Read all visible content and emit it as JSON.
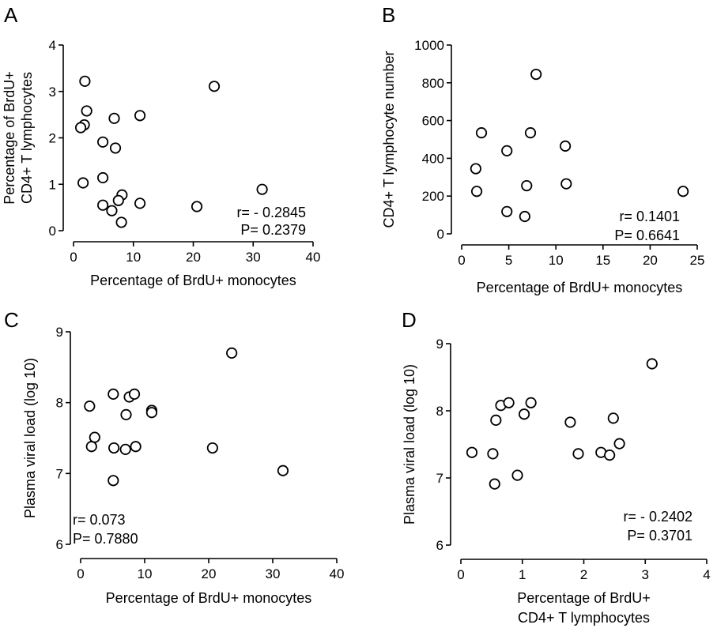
{
  "chart_data": [
    {
      "panel": "A",
      "type": "scatter",
      "xlabel": "Percentage of BrdU+ monocytes",
      "ylabel": [
        "Percentage of BrdU+",
        "CD4+ T lymphocytes"
      ],
      "xlim": [
        0,
        40
      ],
      "ylim": [
        0,
        4
      ],
      "xticks": [
        0,
        10,
        20,
        30,
        40
      ],
      "yticks": [
        0,
        1,
        2,
        3,
        4
      ],
      "annotation": [
        "r= - 0.2845",
        "P= 0.2379"
      ],
      "annotation_align": "right",
      "points": [
        [
          1.9,
          3.22
        ],
        [
          2.2,
          2.58
        ],
        [
          1.8,
          2.28
        ],
        [
          1.2,
          2.22
        ],
        [
          6.8,
          2.42
        ],
        [
          11.1,
          2.48
        ],
        [
          4.9,
          1.91
        ],
        [
          7.0,
          1.78
        ],
        [
          4.9,
          1.14
        ],
        [
          1.6,
          1.03
        ],
        [
          8.1,
          0.77
        ],
        [
          7.5,
          0.65
        ],
        [
          11.1,
          0.59
        ],
        [
          4.9,
          0.55
        ],
        [
          6.4,
          0.43
        ],
        [
          8.0,
          0.18
        ],
        [
          20.6,
          0.52
        ],
        [
          23.5,
          3.11
        ],
        [
          31.5,
          0.89
        ]
      ]
    },
    {
      "panel": "B",
      "type": "scatter",
      "xlabel": "Percentage of BrdU+ monocytes",
      "ylabel": [
        "CD4+ T lymphocyte  number"
      ],
      "xlim": [
        0,
        25
      ],
      "ylim": [
        0,
        1000
      ],
      "xticks": [
        0,
        5,
        10,
        15,
        20,
        25
      ],
      "yticks": [
        0,
        200,
        400,
        600,
        800,
        1000
      ],
      "annotation": [
        "r= 0.1401",
        "P= 0.6641"
      ],
      "annotation_align": "right",
      "points": [
        [
          2.1,
          535
        ],
        [
          1.5,
          345
        ],
        [
          1.6,
          225
        ],
        [
          4.8,
          440
        ],
        [
          7.3,
          535
        ],
        [
          7.9,
          845
        ],
        [
          6.9,
          255
        ],
        [
          4.8,
          118
        ],
        [
          6.7,
          92
        ],
        [
          11.0,
          465
        ],
        [
          11.1,
          265
        ],
        [
          23.5,
          225
        ]
      ]
    },
    {
      "panel": "C",
      "type": "scatter",
      "xlabel": "Percentage of BrdU+ monocytes",
      "ylabel": [
        "Plasma viral load (log 10)"
      ],
      "xlim": [
        0,
        40
      ],
      "ylim": [
        6,
        9
      ],
      "xticks": [
        0,
        10,
        20,
        30,
        40
      ],
      "yticks": [
        6,
        7,
        8,
        9
      ],
      "annotation": [
        "r= 0.073",
        "P= 0.7880"
      ],
      "annotation_align": "left",
      "points": [
        [
          1.4,
          7.95
        ],
        [
          2.2,
          7.51
        ],
        [
          1.7,
          7.38
        ],
        [
          5.1,
          8.12
        ],
        [
          7.6,
          8.08
        ],
        [
          8.4,
          8.12
        ],
        [
          7.1,
          7.83
        ],
        [
          11.1,
          7.89
        ],
        [
          11.1,
          7.86
        ],
        [
          5.2,
          7.36
        ],
        [
          7.0,
          7.34
        ],
        [
          8.6,
          7.38
        ],
        [
          5.1,
          6.9
        ],
        [
          20.6,
          7.36
        ],
        [
          23.6,
          8.7
        ],
        [
          31.6,
          7.04
        ]
      ]
    },
    {
      "panel": "D",
      "type": "scatter",
      "xlabel": [
        "Percentage of BrdU+",
        "CD4+ T lymphocytes"
      ],
      "ylabel": [
        "Plasma viral load (log 10)"
      ],
      "xlim": [
        0,
        4
      ],
      "ylim": [
        6,
        9
      ],
      "xticks": [
        0,
        1,
        2,
        3,
        4
      ],
      "yticks": [
        6,
        7,
        8,
        9
      ],
      "annotation": [
        "r= - 0.2402",
        "P= 0.3701"
      ],
      "annotation_align": "right",
      "points": [
        [
          0.18,
          7.38
        ],
        [
          0.52,
          7.36
        ],
        [
          0.55,
          6.91
        ],
        [
          0.57,
          7.86
        ],
        [
          0.65,
          8.08
        ],
        [
          0.78,
          8.12
        ],
        [
          0.92,
          7.04
        ],
        [
          1.03,
          7.95
        ],
        [
          1.14,
          8.12
        ],
        [
          1.78,
          7.83
        ],
        [
          1.91,
          7.36
        ],
        [
          2.28,
          7.38
        ],
        [
          2.42,
          7.34
        ],
        [
          2.48,
          7.89
        ],
        [
          2.58,
          7.51
        ],
        [
          3.11,
          8.7
        ]
      ]
    }
  ]
}
